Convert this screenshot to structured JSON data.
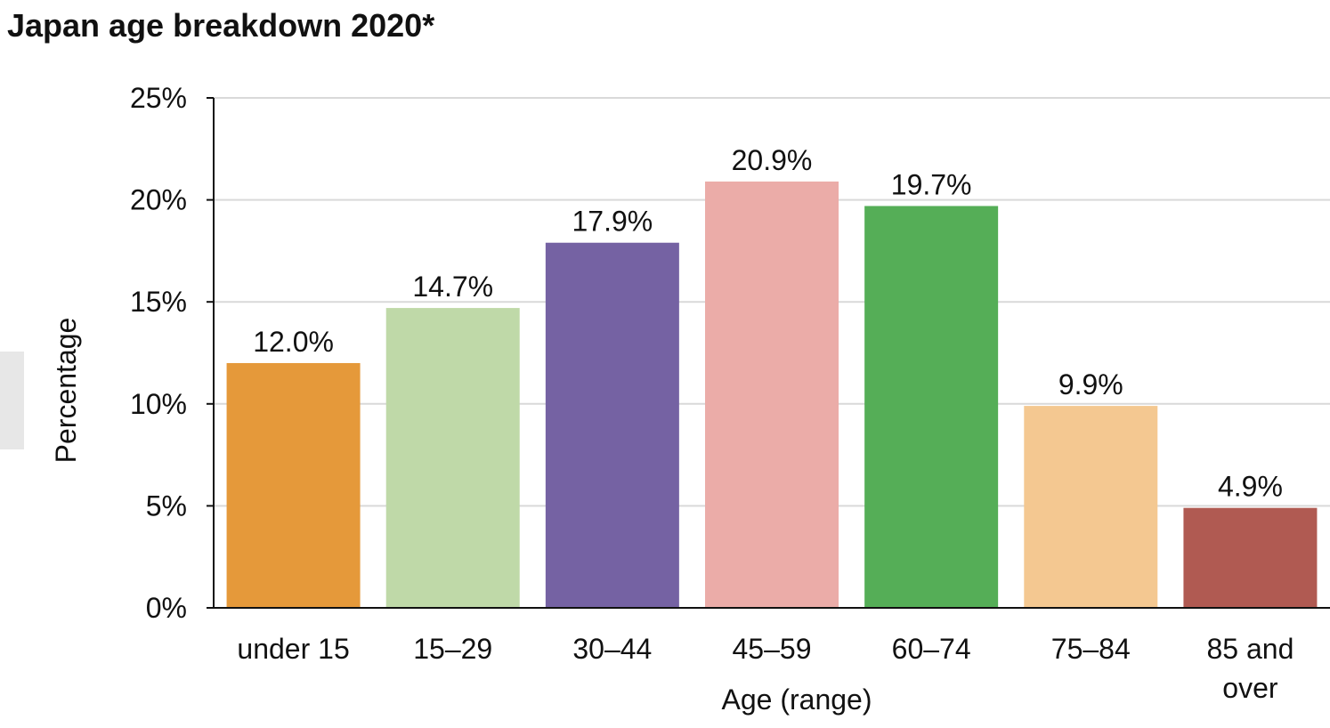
{
  "chart_data": {
    "type": "bar",
    "title": "Japan age breakdown 2020*",
    "xlabel": "Age (range)",
    "ylabel": "Percentage",
    "categories": [
      "under 15",
      "15–29",
      "30–44",
      "45–59",
      "60–74",
      "75–84",
      "85 and over"
    ],
    "values": [
      12.0,
      14.7,
      17.9,
      20.9,
      19.7,
      9.9,
      4.9
    ],
    "value_labels": [
      "12.0%",
      "14.7%",
      "17.9%",
      "20.9%",
      "19.7%",
      "9.9%",
      "4.9%"
    ],
    "colors": [
      "#e5993a",
      "#bfd9a8",
      "#7562a3",
      "#ebaca8",
      "#55ae57",
      "#f4c891",
      "#b05a52"
    ],
    "ylim": [
      0,
      25
    ],
    "yticks": [
      0,
      5,
      10,
      15,
      20,
      25
    ],
    "ytick_labels": [
      "0%",
      "5%",
      "10%",
      "15%",
      "20%",
      "25%"
    ],
    "grid": true,
    "legend": false
  }
}
